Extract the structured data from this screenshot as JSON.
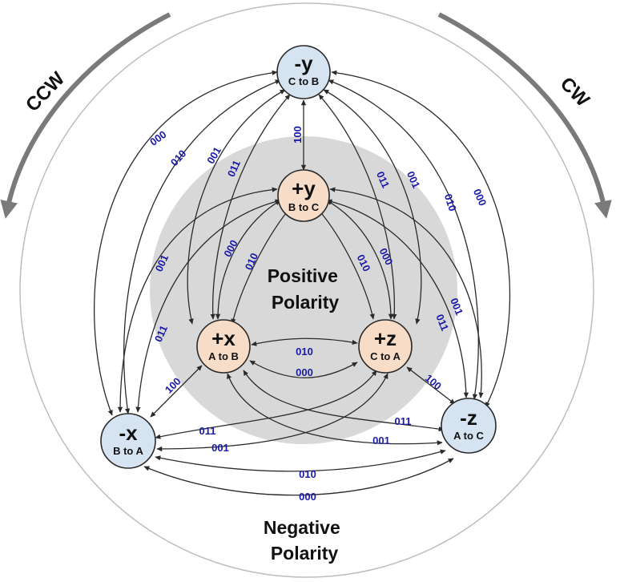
{
  "rotation": {
    "ccw": "CCW",
    "cw": "CW"
  },
  "regions": {
    "positive": [
      "Positive",
      "Polarity"
    ],
    "negative": [
      "Negative",
      "Polarity"
    ]
  },
  "nodes": {
    "neg_y": {
      "name": "-y",
      "sub": "C to B",
      "polarity": "negative",
      "fill": "#d6e4f2"
    },
    "pos_y": {
      "name": "+y",
      "sub": "B to C",
      "polarity": "positive",
      "fill": "#f7dcc8"
    },
    "pos_x": {
      "name": "+x",
      "sub": "A to B",
      "polarity": "positive",
      "fill": "#f7dcc8"
    },
    "pos_z": {
      "name": "+z",
      "sub": "C to A",
      "polarity": "positive",
      "fill": "#f7dcc8"
    },
    "neg_x": {
      "name": "-x",
      "sub": "B to A",
      "polarity": "negative",
      "fill": "#d6e4f2"
    },
    "neg_z": {
      "name": "-z",
      "sub": "A to C",
      "polarity": "negative",
      "fill": "#d6e4f2"
    }
  },
  "edge_codes": {
    "neg_y_neg_x_outer": "000",
    "neg_y_neg_x_inner": "010",
    "neg_y_pos_x_outer": "001",
    "neg_y_pos_x_inner": "011",
    "neg_y_pos_y": "100",
    "neg_y_pos_z_inner": "011",
    "neg_y_pos_z_outer": "001",
    "neg_y_neg_z_inner": "010",
    "neg_y_neg_z_outer": "000",
    "pos_y_neg_x_upper": "001",
    "pos_y_neg_x_lower": "011",
    "pos_y_pos_x_outer": "000",
    "pos_y_pos_x_inner": "010",
    "pos_y_pos_z_inner": "010",
    "pos_y_pos_z_outer": "000",
    "pos_y_neg_z_upper": "001",
    "pos_y_neg_z_lower": "011",
    "pos_x_pos_z_upper": "010",
    "pos_x_pos_z_lower": "000",
    "neg_x_pos_x": "100",
    "neg_z_pos_z": "100",
    "neg_x_pos_z_upper": "011",
    "neg_x_pos_z_lower": "001",
    "neg_z_pos_x_upper": "011",
    "neg_z_pos_x_lower": "001",
    "neg_x_neg_z_upper": "010",
    "neg_x_neg_z_lower": "000"
  }
}
